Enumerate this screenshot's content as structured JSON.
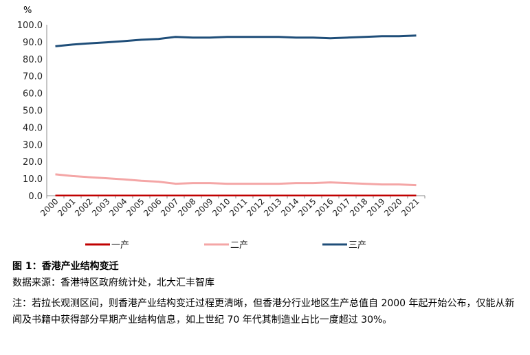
{
  "figure": {
    "title": "图 1：香港产业结构变迁",
    "source": "数据来源：香港特区政府统计处，北大汇丰智库",
    "note": "注：若拉长观测区间，则香港产业结构变迁过程更清晰，但香港分行业地区生产总值自 2000 年起开始公布，仅能从新闻及书籍中获得部分早期产业结构信息，如上世纪 70 年代其制造业占比一度超过 30%。"
  },
  "chart_data": {
    "type": "line",
    "title": "",
    "xlabel": "",
    "ylabel": "%",
    "ylim": [
      0,
      100
    ],
    "ytick_step": 10,
    "ytick_labels": [
      "0.0",
      "10.0",
      "20.0",
      "30.0",
      "40.0",
      "50.0",
      "60.0",
      "70.0",
      "80.0",
      "90.0",
      "100.0"
    ],
    "grid": false,
    "legend_position": "bottom",
    "x": [
      "2000",
      "2001",
      "2002",
      "2003",
      "2004",
      "2005",
      "2006",
      "2007",
      "2008",
      "2009",
      "2010",
      "2011",
      "2012",
      "2013",
      "2014",
      "2015",
      "2016",
      "2017",
      "2018",
      "2019",
      "2020",
      "2021"
    ],
    "series": [
      {
        "name": "一产",
        "color": "#c00000",
        "values": [
          0.1,
          0.1,
          0.1,
          0.1,
          0.1,
          0.1,
          0.1,
          0.1,
          0.1,
          0.1,
          0.1,
          0.1,
          0.1,
          0.1,
          0.1,
          0.1,
          0.1,
          0.1,
          0.1,
          0.1,
          0.1,
          0.1
        ]
      },
      {
        "name": "二产",
        "color": "#f4a6a6",
        "values": [
          12.5,
          11.5,
          10.8,
          10.2,
          9.5,
          8.7,
          8.2,
          7.0,
          7.4,
          7.4,
          7.0,
          7.0,
          7.0,
          7.0,
          7.4,
          7.4,
          7.8,
          7.4,
          7.0,
          6.6,
          6.6,
          6.2
        ]
      },
      {
        "name": "三产",
        "color": "#1f4e79",
        "values": [
          87.4,
          88.4,
          89.1,
          89.7,
          90.4,
          91.2,
          91.7,
          92.9,
          92.5,
          92.5,
          92.9,
          92.9,
          92.9,
          92.9,
          92.5,
          92.5,
          92.1,
          92.5,
          92.9,
          93.3,
          93.3,
          93.7
        ]
      }
    ]
  }
}
